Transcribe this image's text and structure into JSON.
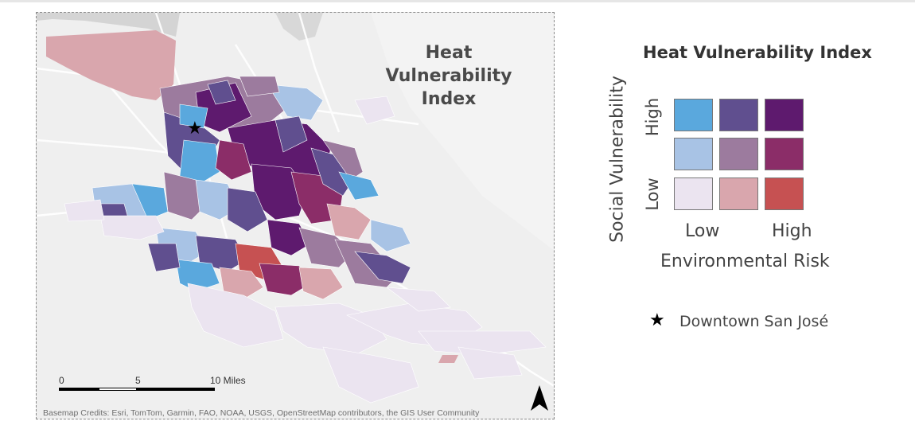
{
  "map": {
    "title_lines": [
      "Heat",
      "Vulnerability",
      "Index"
    ],
    "scale": {
      "labels": [
        "0",
        "5",
        "10 Miles"
      ]
    },
    "north_arrow": "north-arrow-icon",
    "credits": "Basemap Credits: Esri, TomTom, Garmin, FAO, NOAA, USGS, OpenStreetMap contributors, the GIS User Community",
    "landmark_marker": "star-icon"
  },
  "legend": {
    "title": "Heat Vulnerability Index",
    "y_axis_label": "Social Vulnerability",
    "y_high": "High",
    "y_low": "Low",
    "x_axis_label": "Environmental Risk",
    "x_low": "Low",
    "x_high": "High",
    "matrix_colors": [
      [
        "#5aa8dd",
        "#604f8f",
        "#5e1a6e"
      ],
      [
        "#a8c3e5",
        "#9c7b9e",
        "#8b2d68"
      ],
      [
        "#ebe4f0",
        "#d9a6ad",
        "#c65152"
      ]
    ],
    "landmark": {
      "icon": "star-icon",
      "label": "Downtown San José"
    }
  }
}
